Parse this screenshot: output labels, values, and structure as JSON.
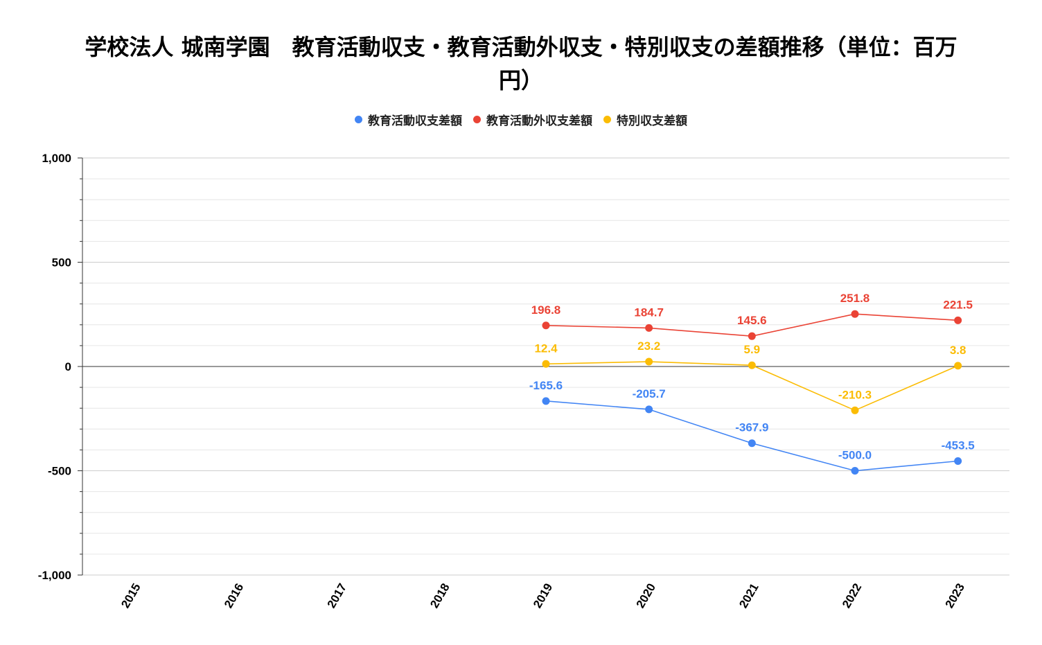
{
  "chart_data": {
    "type": "line",
    "title": "学校法人 城南学園　教育活動収支・教育活動外収支・特別収支の差額推移（単位：百万円）",
    "title_lines": [
      "学校法人 城南学園　教育活動収支・教育活動外収支・特別収支の差額推移（単位：百万",
      "円）"
    ],
    "xlabel": "",
    "ylabel": "",
    "categories": [
      "2015",
      "2016",
      "2017",
      "2018",
      "2019",
      "2020",
      "2021",
      "2022",
      "2023"
    ],
    "ylim": [
      -1000,
      1000
    ],
    "yticks": [
      1000,
      500,
      0,
      -500,
      -1000
    ],
    "ytick_labels": [
      "1,000",
      "500",
      "0",
      "-500",
      "-1,000"
    ],
    "grid": true,
    "legend_position": "top",
    "series": [
      {
        "name": "教育活動収支差額",
        "color": "#4285F4",
        "values": [
          null,
          null,
          null,
          null,
          -165.6,
          -205.7,
          -367.9,
          -500.0,
          -453.5
        ],
        "labels": [
          "",
          "",
          "",
          "",
          "-165.6",
          "-205.7",
          "-367.9",
          "-500.0",
          "-453.5"
        ],
        "label_position": "above"
      },
      {
        "name": "教育活動外収支差額",
        "color": "#EA4335",
        "values": [
          null,
          null,
          null,
          null,
          196.8,
          184.7,
          145.6,
          251.8,
          221.5
        ],
        "labels": [
          "",
          "",
          "",
          "",
          "196.8",
          "184.7",
          "145.6",
          "251.8",
          "221.5"
        ],
        "label_position": "above"
      },
      {
        "name": "特別収支差額",
        "color": "#FBBC04",
        "values": [
          null,
          null,
          null,
          null,
          12.4,
          23.2,
          5.9,
          -210.3,
          3.8
        ],
        "labels": [
          "",
          "",
          "",
          "",
          "12.4",
          "23.2",
          "5.9",
          "-210.3",
          "3.8"
        ],
        "label_position": "above"
      }
    ]
  }
}
